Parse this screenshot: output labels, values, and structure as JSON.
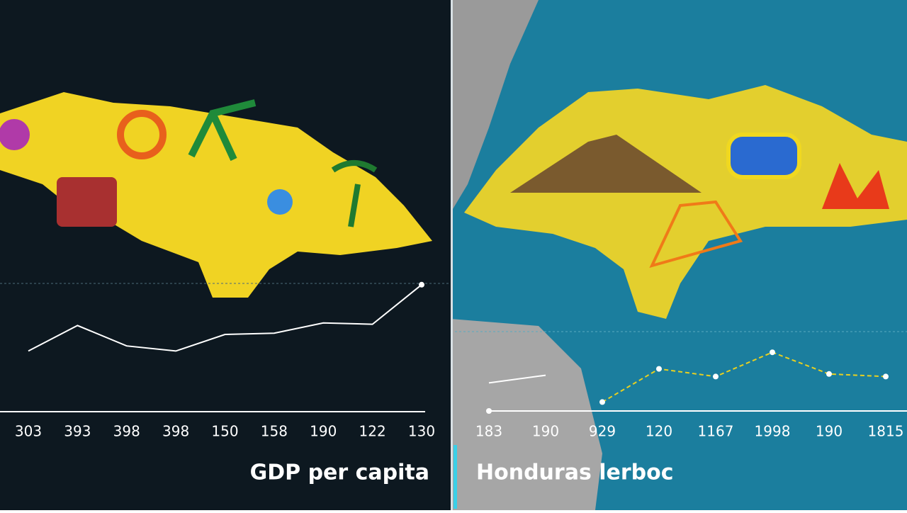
{
  "chart_data": [
    {
      "type": "line",
      "title": "GDP per capita",
      "categories": [
        "303",
        "393",
        "398",
        "398",
        "150",
        "158",
        "190",
        "122",
        "130"
      ],
      "series": [
        {
          "color": "#ffffff",
          "values": [
            47,
            67,
            51,
            47,
            60,
            61,
            69,
            68,
            99
          ]
        }
      ],
      "ylim": [
        0,
        100
      ]
    },
    {
      "type": "line",
      "title": "Honduras lerboc",
      "categories": [
        "183",
        "190",
        "929",
        "120",
        "1167",
        "1998",
        "190",
        "1815"
      ],
      "series": [
        {
          "color": "#ffffff",
          "values": [
            22,
            28,
            null,
            null,
            null,
            null,
            null,
            null
          ]
        },
        {
          "color": "#e8d020",
          "values": [
            null,
            null,
            7,
            33,
            27,
            46,
            29,
            27
          ]
        }
      ],
      "ylim": [
        0,
        100
      ]
    }
  ]
}
